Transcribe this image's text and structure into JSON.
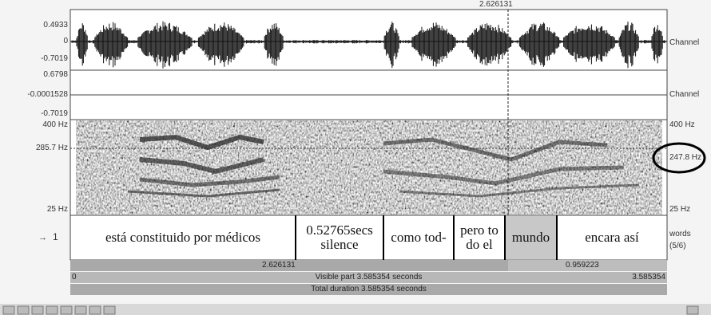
{
  "cursor_time": "2.626131",
  "channel1": {
    "max": "0.4933",
    "zero": "0",
    "min": "-0.7019",
    "label": "Channel"
  },
  "channel2": {
    "max": "0.6798",
    "mid": "-0.0001528",
    "min": "-0.7019",
    "label": "Channel"
  },
  "spectrogram": {
    "top": "400 Hz",
    "cursor": "285.7 Hz",
    "bottom": "25 Hz",
    "right_top": "400 Hz",
    "right_cursor": "247.8 Hz",
    "right_bottom": "25 Hz"
  },
  "tier": {
    "number": "1",
    "name": "words",
    "count": "(5/6)",
    "intervals": [
      "está constituido por médicos",
      "0.52765secs silence",
      "como tod-",
      "pero to do el",
      "mundo",
      "encara así"
    ]
  },
  "selection": {
    "left": "2.626131",
    "right": "0.959223"
  },
  "visible": {
    "start": "0",
    "label": "Visible part 3.585354 seconds",
    "end": "3.585354"
  },
  "total": "Total duration 3.585354 seconds"
}
